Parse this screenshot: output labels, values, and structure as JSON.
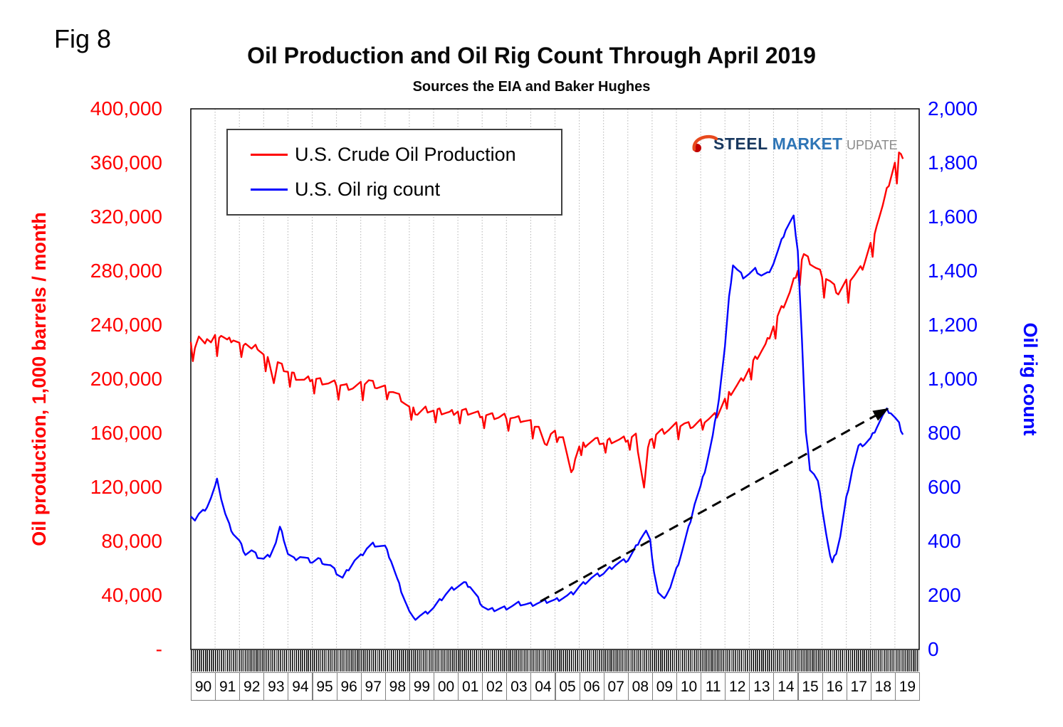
{
  "fig_label": "Fig 8",
  "logo": {
    "steel": "STEEL",
    "market": "MARKET",
    "update": "UPDATE"
  },
  "chart_data": {
    "type": "line",
    "title": "Oil Production and Oil Rig Count Through April 2019",
    "subtitle": "Sources the EIA and Baker Hughes",
    "grid": "vertical-dotted",
    "legend_position": "top-left-inside",
    "x_axis": {
      "start_year": 1990,
      "end": 2019.33,
      "tick_labels": [
        "90",
        "91",
        "92",
        "93",
        "94",
        "95",
        "96",
        "97",
        "98",
        "99",
        "00",
        "01",
        "02",
        "03",
        "04",
        "05",
        "06",
        "07",
        "08",
        "09",
        "10",
        "11",
        "12",
        "13",
        "14",
        "15",
        "16",
        "17",
        "18",
        "19"
      ]
    },
    "left_axis": {
      "label": "Oil production, 1,000 barrels / month",
      "color": "#FF0000",
      "min": 0,
      "max": 400000,
      "tick_step": 40000,
      "tick_labels": [
        "400,000",
        "360,000",
        "320,000",
        "280,000",
        "240,000",
        "200,000",
        "160,000",
        "120,000",
        "80,000",
        "40,000",
        "-"
      ]
    },
    "right_axis": {
      "label": "Oil rig count",
      "color": "#0000FF",
      "min": 0,
      "max": 2000,
      "tick_step": 200,
      "tick_labels": [
        "2,000",
        "1,800",
        "1,600",
        "1,400",
        "1,200",
        "1,000",
        "800",
        "600",
        "400",
        "200",
        "0"
      ]
    },
    "series": [
      {
        "name": "U.S. Crude Oil Production",
        "color": "#FF0000",
        "axis": "left",
        "units": "1,000 barrels per month",
        "render": {
          "noise": 2500,
          "feb_factor": 0.947
        },
        "points": [
          [
            1990.0,
            230000
          ],
          [
            1990.17,
            224000
          ],
          [
            1990.33,
            231000
          ],
          [
            1990.5,
            226000
          ],
          [
            1990.67,
            231000
          ],
          [
            1990.83,
            227000
          ],
          [
            1991.0,
            231000
          ],
          [
            1991.25,
            233000
          ],
          [
            1991.5,
            228000
          ],
          [
            1991.75,
            230000
          ],
          [
            1992.0,
            226000
          ],
          [
            1992.25,
            228000
          ],
          [
            1992.5,
            222000
          ],
          [
            1992.75,
            224000
          ],
          [
            1993.0,
            218000
          ],
          [
            1993.25,
            213000
          ],
          [
            1993.42,
            198000
          ],
          [
            1993.58,
            212000
          ],
          [
            1993.83,
            208000
          ],
          [
            1994.0,
            206000
          ],
          [
            1994.33,
            202000
          ],
          [
            1994.67,
            199000
          ],
          [
            1995.0,
            201000
          ],
          [
            1995.33,
            199000
          ],
          [
            1995.67,
            197000
          ],
          [
            1996.0,
            197000
          ],
          [
            1996.33,
            195000
          ],
          [
            1996.67,
            194000
          ],
          [
            1997.0,
            196000
          ],
          [
            1997.33,
            199000
          ],
          [
            1997.67,
            195000
          ],
          [
            1998.0,
            194000
          ],
          [
            1998.33,
            191000
          ],
          [
            1998.67,
            186000
          ],
          [
            1999.0,
            179000
          ],
          [
            1999.33,
            175000
          ],
          [
            1999.67,
            178000
          ],
          [
            2000.0,
            177000
          ],
          [
            2000.33,
            176000
          ],
          [
            2000.67,
            175000
          ],
          [
            2001.0,
            177000
          ],
          [
            2001.33,
            176000
          ],
          [
            2001.67,
            175000
          ],
          [
            2002.0,
            174000
          ],
          [
            2002.33,
            173000
          ],
          [
            2002.67,
            172000
          ],
          [
            2003.0,
            173000
          ],
          [
            2003.33,
            171000
          ],
          [
            2003.67,
            170000
          ],
          [
            2004.0,
            168000
          ],
          [
            2004.33,
            165000
          ],
          [
            2004.58,
            150000
          ],
          [
            2004.83,
            160000
          ],
          [
            2005.0,
            161000
          ],
          [
            2005.33,
            158000
          ],
          [
            2005.67,
            129000
          ],
          [
            2005.83,
            142000
          ],
          [
            2006.0,
            150000
          ],
          [
            2006.33,
            153000
          ],
          [
            2006.67,
            155000
          ],
          [
            2007.0,
            153000
          ],
          [
            2007.33,
            155000
          ],
          [
            2007.67,
            155000
          ],
          [
            2008.0,
            156000
          ],
          [
            2008.33,
            158000
          ],
          [
            2008.67,
            120000
          ],
          [
            2008.83,
            148000
          ],
          [
            2009.0,
            158000
          ],
          [
            2009.33,
            161000
          ],
          [
            2009.67,
            163000
          ],
          [
            2010.0,
            166000
          ],
          [
            2010.33,
            167000
          ],
          [
            2010.67,
            166000
          ],
          [
            2011.0,
            169000
          ],
          [
            2011.33,
            171000
          ],
          [
            2011.67,
            174000
          ],
          [
            2012.0,
            185000
          ],
          [
            2012.33,
            192000
          ],
          [
            2012.67,
            199000
          ],
          [
            2013.0,
            208000
          ],
          [
            2013.33,
            217000
          ],
          [
            2013.67,
            225000
          ],
          [
            2014.0,
            240000
          ],
          [
            2014.33,
            252000
          ],
          [
            2014.67,
            264000
          ],
          [
            2015.0,
            282000
          ],
          [
            2015.25,
            292000
          ],
          [
            2015.5,
            287000
          ],
          [
            2015.75,
            282000
          ],
          [
            2016.0,
            278000
          ],
          [
            2016.33,
            272000
          ],
          [
            2016.67,
            264000
          ],
          [
            2017.0,
            272000
          ],
          [
            2017.33,
            277000
          ],
          [
            2017.67,
            283000
          ],
          [
            2018.0,
            300000
          ],
          [
            2018.25,
            315000
          ],
          [
            2018.5,
            328000
          ],
          [
            2018.75,
            345000
          ],
          [
            2019.0,
            360000
          ],
          [
            2019.25,
            369000
          ],
          [
            2019.33,
            363000
          ]
        ]
      },
      {
        "name": "U.S. Oil rig count",
        "color": "#0000FF",
        "axis": "right",
        "units": "rigs",
        "render": {
          "noise": 8
        },
        "points": [
          [
            1990.0,
            500
          ],
          [
            1990.17,
            480
          ],
          [
            1990.33,
            500
          ],
          [
            1990.5,
            510
          ],
          [
            1990.67,
            530
          ],
          [
            1990.83,
            560
          ],
          [
            1991.0,
            600
          ],
          [
            1991.08,
            640
          ],
          [
            1991.25,
            560
          ],
          [
            1991.42,
            500
          ],
          [
            1991.58,
            460
          ],
          [
            1991.75,
            430
          ],
          [
            1992.0,
            400
          ],
          [
            1992.25,
            355
          ],
          [
            1992.5,
            365
          ],
          [
            1992.75,
            345
          ],
          [
            1993.0,
            335
          ],
          [
            1993.25,
            350
          ],
          [
            1993.5,
            395
          ],
          [
            1993.67,
            450
          ],
          [
            1993.83,
            410
          ],
          [
            1994.0,
            355
          ],
          [
            1994.25,
            335
          ],
          [
            1994.5,
            345
          ],
          [
            1994.75,
            335
          ],
          [
            1995.0,
            325
          ],
          [
            1995.25,
            335
          ],
          [
            1995.5,
            320
          ],
          [
            1995.75,
            310
          ],
          [
            1996.0,
            285
          ],
          [
            1996.25,
            265
          ],
          [
            1996.5,
            300
          ],
          [
            1996.75,
            330
          ],
          [
            1997.0,
            345
          ],
          [
            1997.25,
            375
          ],
          [
            1997.5,
            390
          ],
          [
            1997.75,
            385
          ],
          [
            1998.0,
            380
          ],
          [
            1998.25,
            330
          ],
          [
            1998.5,
            260
          ],
          [
            1998.75,
            200
          ],
          [
            1999.0,
            140
          ],
          [
            1999.17,
            112
          ],
          [
            1999.42,
            125
          ],
          [
            1999.67,
            135
          ],
          [
            1999.83,
            145
          ],
          [
            2000.0,
            155
          ],
          [
            2000.25,
            180
          ],
          [
            2000.5,
            205
          ],
          [
            2000.75,
            225
          ],
          [
            2001.0,
            235
          ],
          [
            2001.25,
            245
          ],
          [
            2001.5,
            235
          ],
          [
            2001.75,
            200
          ],
          [
            2002.0,
            165
          ],
          [
            2002.25,
            145
          ],
          [
            2002.5,
            148
          ],
          [
            2002.75,
            152
          ],
          [
            2003.0,
            155
          ],
          [
            2003.25,
            162
          ],
          [
            2003.5,
            170
          ],
          [
            2003.75,
            168
          ],
          [
            2004.0,
            167
          ],
          [
            2004.25,
            172
          ],
          [
            2004.5,
            176
          ],
          [
            2004.75,
            180
          ],
          [
            2005.0,
            182
          ],
          [
            2005.25,
            190
          ],
          [
            2005.5,
            198
          ],
          [
            2005.75,
            210
          ],
          [
            2006.0,
            232
          ],
          [
            2006.25,
            250
          ],
          [
            2006.5,
            265
          ],
          [
            2006.75,
            275
          ],
          [
            2007.0,
            282
          ],
          [
            2007.25,
            300
          ],
          [
            2007.5,
            315
          ],
          [
            2007.75,
            325
          ],
          [
            2008.0,
            332
          ],
          [
            2008.25,
            365
          ],
          [
            2008.5,
            410
          ],
          [
            2008.75,
            438
          ],
          [
            2008.92,
            400
          ],
          [
            2009.08,
            290
          ],
          [
            2009.25,
            210
          ],
          [
            2009.42,
            190
          ],
          [
            2009.58,
            205
          ],
          [
            2009.75,
            230
          ],
          [
            2010.0,
            295
          ],
          [
            2010.25,
            370
          ],
          [
            2010.5,
            450
          ],
          [
            2010.75,
            540
          ],
          [
            2011.0,
            602
          ],
          [
            2011.25,
            690
          ],
          [
            2011.5,
            790
          ],
          [
            2011.75,
            930
          ],
          [
            2012.0,
            1120
          ],
          [
            2012.17,
            1300
          ],
          [
            2012.33,
            1425
          ],
          [
            2012.5,
            1405
          ],
          [
            2012.75,
            1380
          ],
          [
            2013.0,
            1390
          ],
          [
            2013.25,
            1405
          ],
          [
            2013.5,
            1385
          ],
          [
            2013.75,
            1390
          ],
          [
            2014.0,
            1430
          ],
          [
            2014.25,
            1490
          ],
          [
            2014.5,
            1555
          ],
          [
            2014.75,
            1590
          ],
          [
            2014.83,
            1600
          ],
          [
            2015.0,
            1480
          ],
          [
            2015.17,
            1150
          ],
          [
            2015.33,
            800
          ],
          [
            2015.5,
            670
          ],
          [
            2015.67,
            650
          ],
          [
            2015.83,
            620
          ],
          [
            2016.0,
            530
          ],
          [
            2016.17,
            430
          ],
          [
            2016.33,
            345
          ],
          [
            2016.42,
            318
          ],
          [
            2016.58,
            360
          ],
          [
            2016.75,
            420
          ],
          [
            2017.0,
            560
          ],
          [
            2017.25,
            670
          ],
          [
            2017.5,
            750
          ],
          [
            2017.75,
            762
          ],
          [
            2018.0,
            780
          ],
          [
            2018.25,
            825
          ],
          [
            2018.5,
            865
          ],
          [
            2018.67,
            885
          ],
          [
            2018.83,
            878
          ],
          [
            2019.0,
            858
          ],
          [
            2019.17,
            835
          ],
          [
            2019.33,
            795
          ]
        ]
      }
    ],
    "trend_arrow": {
      "axis": "right",
      "style": "dashed",
      "color": "#000000",
      "from": [
        2004.4,
        178
      ],
      "to": [
        2018.7,
        890
      ]
    }
  }
}
